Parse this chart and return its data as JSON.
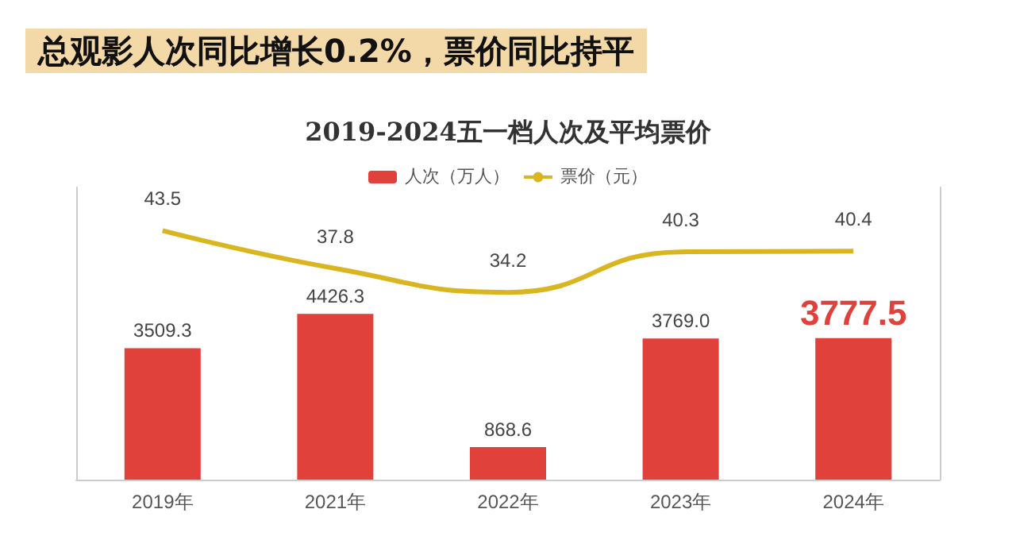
{
  "chart_data": {
    "type": "bar",
    "title": "总观影人次同比增长0.2%，票价同比持平",
    "subtitle": "2019-2024五一档人次及平均票价",
    "categories": [
      "2019年",
      "2021年",
      "2022年",
      "2023年",
      "2024年"
    ],
    "series": [
      {
        "name": "人次（万人）",
        "color": "#e0413a",
        "values": [
          3509.3,
          4426.3,
          868.6,
          3769.0,
          3777.5
        ],
        "value_labels": [
          "3509.3",
          "4426.3",
          "868.6",
          "3769.0",
          "3777.5"
        ]
      },
      {
        "name": "票价（元）",
        "type": "line",
        "axis": "y2",
        "color": "#d9b520",
        "values": [
          43.5,
          37.8,
          34.2,
          40.3,
          40.4
        ],
        "value_labels": [
          "43.5",
          "37.8",
          "34.2",
          "40.3",
          "40.4"
        ]
      }
    ],
    "ylim": [
      0,
      7800
    ],
    "y2lim": [
      6,
      50
    ],
    "tick_labels": "x",
    "grid": false,
    "legend": "top",
    "marker": "none"
  }
}
